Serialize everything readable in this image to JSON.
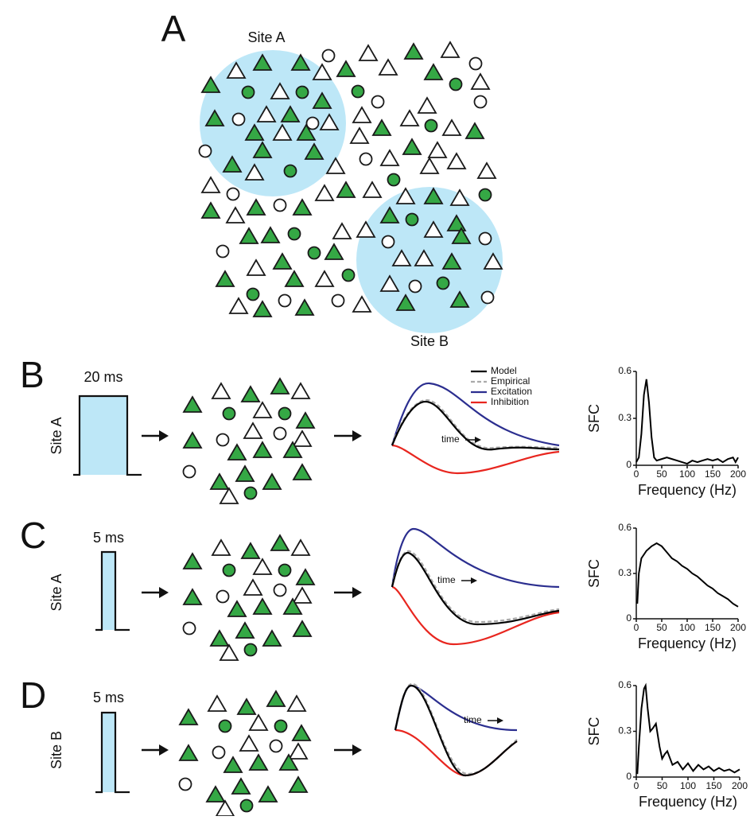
{
  "panel_a": {
    "label": "A",
    "sites": [
      "Site A",
      "Site B"
    ]
  },
  "rows": [
    {
      "label": "B",
      "site": "Site A",
      "pulse": "20 ms",
      "time": "time"
    },
    {
      "label": "C",
      "site": "Site A",
      "pulse": "5 ms",
      "time": "time"
    },
    {
      "label": "D",
      "site": "Site B",
      "pulse": "5 ms",
      "time": "time"
    }
  ],
  "legend": [
    "Model",
    "Empirical",
    "Excitation",
    "Inhibition"
  ],
  "chart_data": [
    {
      "type": "line",
      "ylabel": "SFC",
      "xlabel": "Frequency (Hz)",
      "color": "#000000",
      "x": [
        0,
        5,
        10,
        15,
        20,
        25,
        30,
        35,
        40,
        50,
        60,
        70,
        80,
        90,
        100,
        110,
        120,
        130,
        140,
        150,
        160,
        170,
        180,
        190,
        195,
        200
      ],
      "values": [
        0.02,
        0.05,
        0.2,
        0.45,
        0.55,
        0.4,
        0.18,
        0.05,
        0.03,
        0.04,
        0.05,
        0.04,
        0.03,
        0.02,
        0.01,
        0.03,
        0.02,
        0.03,
        0.04,
        0.03,
        0.04,
        0.02,
        0.04,
        0.05,
        0.02,
        0.05
      ],
      "xlim": [
        0,
        200
      ],
      "ylim": [
        0,
        0.6
      ],
      "xticks": [
        0,
        50,
        100,
        150,
        200
      ],
      "yticks": [
        0,
        0.3,
        0.6
      ]
    },
    {
      "type": "line",
      "ylabel": "SFC",
      "xlabel": "Frequency (Hz)",
      "color": "#000000",
      "x": [
        2,
        5,
        10,
        20,
        30,
        40,
        50,
        60,
        70,
        80,
        90,
        100,
        110,
        120,
        130,
        140,
        150,
        160,
        170,
        180,
        190,
        200
      ],
      "values": [
        0.1,
        0.3,
        0.4,
        0.45,
        0.48,
        0.5,
        0.48,
        0.44,
        0.4,
        0.38,
        0.35,
        0.33,
        0.3,
        0.28,
        0.25,
        0.22,
        0.2,
        0.17,
        0.15,
        0.13,
        0.1,
        0.08
      ],
      "xlim": [
        0,
        200
      ],
      "ylim": [
        0,
        0.6
      ],
      "xticks": [
        0,
        50,
        100,
        150,
        200
      ],
      "yticks": [
        0,
        0.3,
        0.6
      ]
    },
    {
      "type": "line",
      "ylabel": "SFC",
      "xlabel": "Frequency (Hz)",
      "color": "#000000",
      "x": [
        2,
        5,
        10,
        15,
        18,
        22,
        27,
        32,
        38,
        45,
        50,
        55,
        60,
        70,
        80,
        90,
        100,
        110,
        120,
        130,
        140,
        150,
        160,
        170,
        180,
        190,
        200
      ],
      "values": [
        0.02,
        0.2,
        0.45,
        0.58,
        0.6,
        0.45,
        0.3,
        0.32,
        0.35,
        0.2,
        0.12,
        0.15,
        0.17,
        0.08,
        0.1,
        0.05,
        0.09,
        0.04,
        0.08,
        0.05,
        0.07,
        0.04,
        0.06,
        0.04,
        0.05,
        0.03,
        0.05
      ],
      "xlim": [
        0,
        200
      ],
      "ylim": [
        0,
        0.6
      ],
      "xticks": [
        0,
        50,
        100,
        150,
        200
      ],
      "yticks": [
        0,
        0.3,
        0.6
      ]
    }
  ]
}
